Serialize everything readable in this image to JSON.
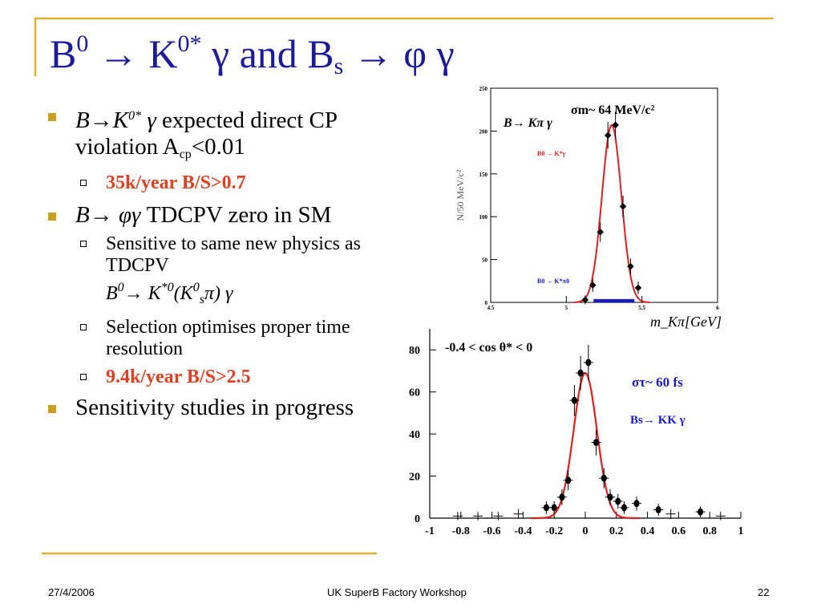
{
  "slide": {
    "title": {
      "p1": "B",
      "p1_sup": "0",
      "p2": " → K",
      "p2_sup": "0*",
      "p3": " γ  and  B",
      "p3_sub": "s",
      "p4": " → φ γ"
    },
    "bullets": [
      {
        "id": "b1",
        "parts": [
          "B→K",
          "0*",
          " γ",
          " expected direct CP violation A",
          "cp",
          "<0.01"
        ],
        "sub": [
          {
            "text": "35k/year B/S>0.7",
            "style": "red"
          }
        ]
      },
      {
        "id": "b2",
        "parts": [
          "B→ φγ",
          " TDCPV zero in SM"
        ],
        "sub": [
          {
            "text": "Sensitive to same new physics as TDCPV",
            "formula": [
              "B",
              "0",
              "→ K",
              "*0",
              "(K",
              "0",
              "s",
              "π) γ"
            ]
          },
          {
            "text": "Selection optimises proper time resolution"
          },
          {
            "text": "9.4k/year B/S>2.5",
            "style": "red"
          }
        ]
      },
      {
        "id": "b3",
        "parts": [
          "Sensitivity studies in progress"
        ]
      }
    ],
    "footer": {
      "date": "27/4/2006",
      "center": "UK SuperB Factory Workshop",
      "page": "22"
    },
    "colors": {
      "title": "#1a1a9a",
      "bullet": "#c8a020",
      "rule": "#e0b030",
      "red": "#e04020",
      "blue": "#1a1acc"
    }
  },
  "chart_data": [
    {
      "type": "scatter",
      "ylabel": "N/50 MeV/c²",
      "xlabel": "m_Kπ[GeV]",
      "xlim": [
        4.5,
        6
      ],
      "ylim": [
        0,
        250
      ],
      "xticks": [
        "4.5",
        "5",
        "5.5",
        "6"
      ],
      "yticks": [
        "0",
        "50",
        "100",
        "150",
        "200",
        "250"
      ],
      "annotations": [
        "B→ Kπ γ",
        "σm~ 64 MeV/c²",
        "B0 → K*γ",
        "B0 → K*π0"
      ],
      "series": [
        {
          "name": "B0 → K*γ",
          "x": [
            5.125,
            5.175,
            5.225,
            5.275,
            5.325,
            5.375,
            5.425,
            5.475
          ],
          "y": [
            3,
            20,
            82,
            195,
            207,
            112,
            42,
            17
          ]
        }
      ],
      "fit": {
        "type": "gaussian",
        "mean": 5.3,
        "sigma": 0.064,
        "amplitude": 207
      },
      "background": {
        "name": "B0 → K*π0",
        "x": [
          5.18,
          5.45
        ],
        "y": 2
      }
    },
    {
      "type": "scatter",
      "annotations": [
        "-0.4 < cos θ* < 0",
        "στ~ 60 fs",
        "Bs→ KK γ"
      ],
      "xlim": [
        -1,
        1
      ],
      "ylim": [
        0,
        90
      ],
      "xticks": [
        "-1",
        "-0.8",
        "-0.6",
        "-0.4",
        "-0.2",
        "0",
        "0.2",
        "0.4",
        "0.6",
        "0.8",
        "1"
      ],
      "yticks": [
        "0",
        "20",
        "40",
        "60",
        "80"
      ],
      "series": [
        {
          "name": "data",
          "x": [
            -0.82,
            -0.69,
            -0.56,
            -0.43,
            -0.25,
            -0.2,
            -0.15,
            -0.11,
            -0.07,
            -0.03,
            0.02,
            0.07,
            0.12,
            0.16,
            0.21,
            0.25,
            0.33,
            0.47,
            0.55,
            0.74,
            0.87
          ],
          "y": [
            1,
            1,
            1,
            2,
            5,
            5,
            10,
            18,
            56,
            69,
            74,
            36,
            19,
            10,
            8,
            5,
            7,
            4,
            2,
            3,
            1
          ]
        }
      ],
      "fit": {
        "type": "gaussian",
        "mean": 0.0,
        "sigma": 0.075,
        "amplitude": 69
      }
    }
  ]
}
